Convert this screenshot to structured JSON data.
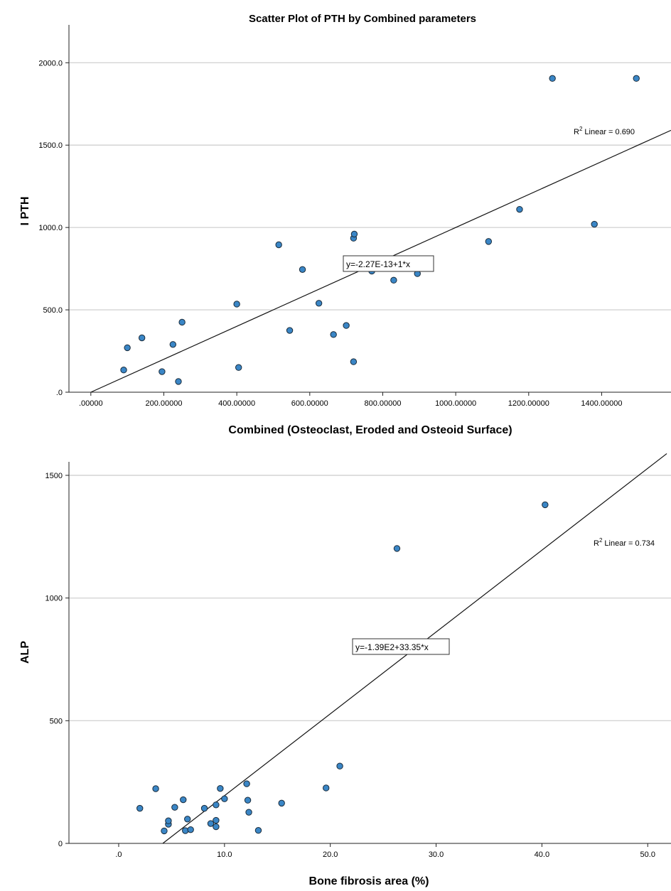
{
  "chart_data": [
    {
      "type": "scatter",
      "title": "Scatter Plot of PTH by Combined parameters",
      "xlabel": "Combined (Osteoclast, Eroded and Osteoid Surface)",
      "ylabel": "I PTH",
      "xlim": [
        -60,
        1590
      ],
      "ylim": [
        0,
        2230
      ],
      "x_ticks": [
        0,
        200,
        400,
        600,
        800,
        1000,
        1200,
        1400
      ],
      "x_tick_labels": [
        ".00000",
        "200.00000",
        "400.00000",
        "600.00000",
        "800.00000",
        "1000.00000",
        "1200.00000",
        "1400.00000"
      ],
      "y_ticks": [
        0,
        500,
        1000,
        1500,
        2000
      ],
      "y_tick_labels": [
        ".0",
        "500.0",
        "1000.0",
        "1500.0",
        "2000.0"
      ],
      "grid": true,
      "fit_line": {
        "intercept": 0,
        "slope": 1,
        "x_range": [
          0,
          1590
        ]
      },
      "r_squared_label": "Linear = 0.690",
      "r_squared_prefix": "R",
      "r_squared_sup": "2",
      "equation_label": "y=-2.27E-13+1*x",
      "points": [
        {
          "x": 90,
          "y": 135
        },
        {
          "x": 100,
          "y": 270
        },
        {
          "x": 140,
          "y": 330
        },
        {
          "x": 195,
          "y": 125
        },
        {
          "x": 225,
          "y": 290
        },
        {
          "x": 240,
          "y": 65
        },
        {
          "x": 250,
          "y": 425
        },
        {
          "x": 400,
          "y": 535
        },
        {
          "x": 405,
          "y": 150
        },
        {
          "x": 515,
          "y": 895
        },
        {
          "x": 545,
          "y": 375
        },
        {
          "x": 580,
          "y": 745
        },
        {
          "x": 625,
          "y": 540
        },
        {
          "x": 665,
          "y": 350
        },
        {
          "x": 700,
          "y": 405
        },
        {
          "x": 720,
          "y": 185
        },
        {
          "x": 720,
          "y": 935
        },
        {
          "x": 722,
          "y": 960
        },
        {
          "x": 770,
          "y": 735
        },
        {
          "x": 830,
          "y": 680
        },
        {
          "x": 895,
          "y": 720
        },
        {
          "x": 1090,
          "y": 915
        },
        {
          "x": 1175,
          "y": 1110
        },
        {
          "x": 1265,
          "y": 1905
        },
        {
          "x": 1380,
          "y": 1020
        },
        {
          "x": 1495,
          "y": 1905
        }
      ]
    },
    {
      "type": "scatter",
      "title": "",
      "xlabel": "Bone fibrosis area (%)",
      "ylabel": "ALP",
      "xlim": [
        -4.7,
        52.2
      ],
      "ylim": [
        0,
        1555
      ],
      "x_ticks": [
        0,
        10,
        20,
        30,
        40,
        50
      ],
      "x_tick_labels": [
        ".0",
        "10.0",
        "20.0",
        "30.0",
        "40.0",
        "50.0"
      ],
      "y_ticks": [
        0,
        500,
        1000,
        1500
      ],
      "y_tick_labels": [
        "0",
        "500",
        "1000",
        "1500"
      ],
      "grid": true,
      "fit_line": {
        "intercept": -139,
        "slope": 33.35,
        "x_range": [
          4.17,
          51.8
        ]
      },
      "r_squared_label": "Linear = 0.734",
      "r_squared_prefix": "R",
      "r_squared_sup": "2",
      "equation_label": "y=-1.39E2+33.35*x",
      "points": [
        {
          "x": 2.0,
          "y": 143
        },
        {
          "x": 3.5,
          "y": 223
        },
        {
          "x": 4.3,
          "y": 51
        },
        {
          "x": 4.7,
          "y": 78
        },
        {
          "x": 4.7,
          "y": 92
        },
        {
          "x": 5.3,
          "y": 147
        },
        {
          "x": 6.1,
          "y": 178
        },
        {
          "x": 6.3,
          "y": 52
        },
        {
          "x": 6.5,
          "y": 99
        },
        {
          "x": 6.8,
          "y": 56
        },
        {
          "x": 8.1,
          "y": 143
        },
        {
          "x": 8.7,
          "y": 81
        },
        {
          "x": 9.2,
          "y": 157
        },
        {
          "x": 9.2,
          "y": 94
        },
        {
          "x": 9.2,
          "y": 68
        },
        {
          "x": 9.6,
          "y": 224
        },
        {
          "x": 10.0,
          "y": 182
        },
        {
          "x": 12.1,
          "y": 243
        },
        {
          "x": 12.2,
          "y": 176
        },
        {
          "x": 12.3,
          "y": 127
        },
        {
          "x": 13.2,
          "y": 53
        },
        {
          "x": 15.4,
          "y": 164
        },
        {
          "x": 19.6,
          "y": 226
        },
        {
          "x": 20.9,
          "y": 315
        },
        {
          "x": 26.3,
          "y": 1202
        },
        {
          "x": 40.3,
          "y": 1380
        }
      ]
    }
  ]
}
